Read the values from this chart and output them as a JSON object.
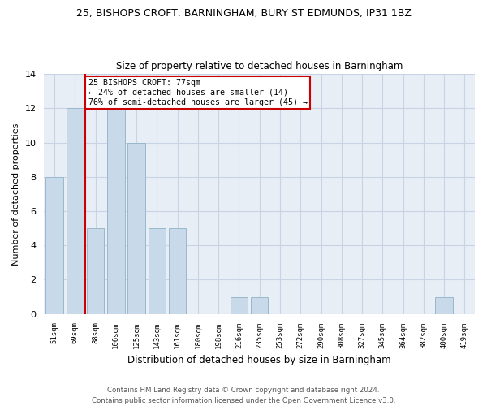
{
  "title1": "25, BISHOPS CROFT, BARNINGHAM, BURY ST EDMUNDS, IP31 1BZ",
  "title2": "Size of property relative to detached houses in Barningham",
  "xlabel": "Distribution of detached houses by size in Barningham",
  "ylabel": "Number of detached properties",
  "footer1": "Contains HM Land Registry data © Crown copyright and database right 2024.",
  "footer2": "Contains public sector information licensed under the Open Government Licence v3.0.",
  "categories": [
    "51sqm",
    "69sqm",
    "88sqm",
    "106sqm",
    "125sqm",
    "143sqm",
    "161sqm",
    "180sqm",
    "198sqm",
    "216sqm",
    "235sqm",
    "253sqm",
    "272sqm",
    "290sqm",
    "308sqm",
    "327sqm",
    "345sqm",
    "364sqm",
    "382sqm",
    "400sqm",
    "419sqm"
  ],
  "values": [
    8,
    12,
    5,
    12,
    10,
    5,
    5,
    0,
    0,
    1,
    1,
    0,
    0,
    0,
    0,
    0,
    0,
    0,
    0,
    1,
    0
  ],
  "bar_color": "#c8daea",
  "bar_edge_color": "#9ab8cc",
  "subject_line_color": "#cc0000",
  "annotation_line1": "25 BISHOPS CROFT: 77sqm",
  "annotation_line2": "← 24% of detached houses are smaller (14)",
  "annotation_line3": "76% of semi-detached houses are larger (45) →",
  "annotation_box_color": "#cc0000",
  "ylim": [
    0,
    14
  ],
  "yticks": [
    0,
    2,
    4,
    6,
    8,
    10,
    12,
    14
  ],
  "grid_color": "#c8d4e4",
  "background_color": "#e8eef6"
}
